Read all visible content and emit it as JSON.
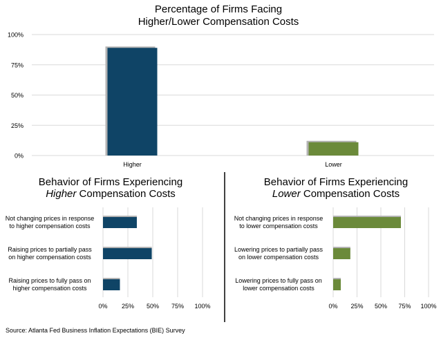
{
  "colors": {
    "higher": "#0f4466",
    "lower": "#6b8a3a",
    "grid": "#d9d9d9",
    "shadow": "#b3b3b3",
    "divider": "#000000"
  },
  "chart_data": [
    {
      "type": "bar",
      "title_line1": "Percentage of Firms Facing",
      "title_line2": "Higher/Lower Compensation Costs",
      "categories": [
        "Higher",
        "Lower"
      ],
      "values": [
        89,
        11
      ],
      "ylim": [
        0,
        100
      ],
      "yticks": [
        0,
        25,
        50,
        75,
        100
      ],
      "ytick_labels": [
        "0%",
        "25%",
        "50%",
        "75%",
        "100%"
      ],
      "grid": true,
      "bar_colors": [
        "#0f4466",
        "#6b8a3a"
      ]
    },
    {
      "type": "bar",
      "orientation": "horizontal",
      "title_pre": "Behavior of Firms Experiencing",
      "title_em": "Higher",
      "title_post": " Compensation Costs",
      "categories": [
        [
          "Not changing prices in response",
          "to higher compensation costs"
        ],
        [
          "Raising prices to partially pass",
          "on higher compensation costs"
        ],
        [
          "Raising prices to fully pass on",
          "higher compensation costs"
        ]
      ],
      "values": [
        34,
        49,
        17
      ],
      "xlim": [
        0,
        100
      ],
      "xticks": [
        0,
        25,
        50,
        75,
        100
      ],
      "xtick_labels": [
        "0%",
        "25%",
        "50%",
        "75%",
        "100%"
      ],
      "grid": true,
      "bar_color": "#0f4466"
    },
    {
      "type": "bar",
      "orientation": "horizontal",
      "title_pre": "Behavior of Firms Experiencing",
      "title_em": "Lower",
      "title_post": " Compensation Costs",
      "categories": [
        [
          "Not changing prices in response",
          "to lower compensation costs"
        ],
        [
          "Lowering prices to partially pass",
          "on lower compensation costs"
        ],
        [
          "Lowering prices to fully pass on",
          "lower compensation costs"
        ]
      ],
      "values": [
        71,
        18,
        8
      ],
      "xlim": [
        0,
        100
      ],
      "xticks": [
        0,
        25,
        50,
        75,
        100
      ],
      "xtick_labels": [
        "0%",
        "25%",
        "50%",
        "75%",
        "100%"
      ],
      "grid": true,
      "bar_color": "#6b8a3a"
    }
  ],
  "source": "Source: Atlanta Fed Business Inflation Expectations (BIE) Survey"
}
